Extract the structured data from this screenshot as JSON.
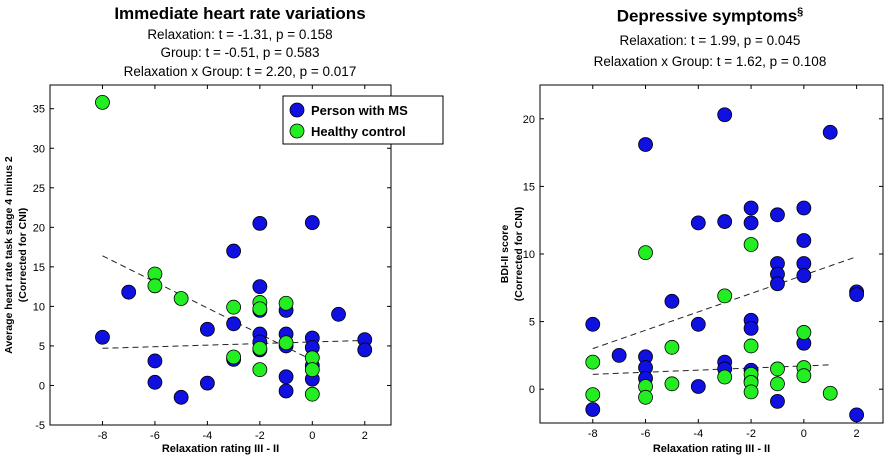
{
  "chart_data": [
    {
      "type": "scatter",
      "title": "Immediate heart rate variations",
      "stats": [
        "Relaxation: t = -1.31, p = 0.158",
        "Group: t = -0.51, p = 0.583",
        "Relaxation x Group: t = 2.20, p = 0.017"
      ],
      "xlabel": "Relaxation rating III - II",
      "ylabel": [
        "Average heart rate task stage 4 minus 2",
        "(Corrected for CNI)"
      ],
      "xlim": [
        -10,
        3
      ],
      "ylim": [
        -5,
        38
      ],
      "xticks": [
        -8,
        -6,
        -4,
        -2,
        0,
        2
      ],
      "yticks": [
        -5,
        0,
        5,
        10,
        15,
        20,
        25,
        30,
        35
      ],
      "legend": [
        {
          "name": "Person with MS",
          "color": "#1010e0"
        },
        {
          "name": "Healthy control",
          "color": "#22ee22"
        }
      ],
      "series": [
        {
          "name": "Person with MS",
          "color": "#1010e0",
          "points": [
            [
              -8,
              6.1
            ],
            [
              -7,
              11.8
            ],
            [
              -6,
              3.1
            ],
            [
              -6,
              0.4
            ],
            [
              -5,
              -1.5
            ],
            [
              -4,
              7.1
            ],
            [
              -4,
              0.3
            ],
            [
              -3,
              17
            ],
            [
              -3,
              7.8
            ],
            [
              -3,
              3.3
            ],
            [
              -2,
              20.5
            ],
            [
              -2,
              12.5
            ],
            [
              -2,
              9.5
            ],
            [
              -2,
              6.5
            ],
            [
              -2,
              5.5
            ],
            [
              -2,
              4.5
            ],
            [
              -1,
              9.5
            ],
            [
              -1,
              6.5
            ],
            [
              -1,
              5.0
            ],
            [
              -1,
              1.1
            ],
            [
              -1,
              -0.7
            ],
            [
              0,
              20.6
            ],
            [
              0,
              6.0
            ],
            [
              0,
              4.8
            ],
            [
              0,
              2.5
            ],
            [
              0,
              0.8
            ],
            [
              1,
              9.0
            ],
            [
              2,
              5.8
            ],
            [
              2,
              4.5
            ]
          ]
        },
        {
          "name": "Healthy control",
          "color": "#22ee22",
          "points": [
            [
              -8,
              35.8
            ],
            [
              -6,
              14.1
            ],
            [
              -6,
              12.6
            ],
            [
              -5,
              11.0
            ],
            [
              -3,
              9.9
            ],
            [
              -3,
              3.6
            ],
            [
              -2,
              10.5
            ],
            [
              -2,
              9.7
            ],
            [
              -2,
              4.7
            ],
            [
              -2,
              2.0
            ],
            [
              -1,
              10.4
            ],
            [
              -1,
              5.4
            ],
            [
              0,
              3.5
            ],
            [
              0,
              2.0
            ],
            [
              0,
              -1.1
            ]
          ]
        }
      ],
      "fit_lines": [
        {
          "from": [
            -8,
            16.4
          ],
          "to": [
            0,
            3.2
          ]
        },
        {
          "from": [
            -8,
            4.7
          ],
          "to": [
            2,
            5.7
          ]
        }
      ]
    },
    {
      "type": "scatter",
      "title": "Depressive symptoms",
      "title_sup": "§",
      "stats": [
        "Relaxation: t = 1.99, p = 0.045",
        "Relaxation x Group: t = 1.62, p = 0.108"
      ],
      "xlabel": "Relaxation rating III - II",
      "ylabel": [
        "BDI-II score",
        "(Corrected for CNI)"
      ],
      "xlim": [
        -10,
        3
      ],
      "ylim": [
        -2.5,
        22.5
      ],
      "xticks": [
        -8,
        -6,
        -4,
        -2,
        0,
        2
      ],
      "yticks": [
        0,
        5,
        10,
        15,
        20
      ],
      "series": [
        {
          "name": "Person with MS",
          "color": "#1010e0",
          "points": [
            [
              -8,
              4.8
            ],
            [
              -8,
              -1.5
            ],
            [
              -7,
              2.5
            ],
            [
              -6,
              18.1
            ],
            [
              -6,
              2.4
            ],
            [
              -6,
              1.6
            ],
            [
              -6,
              0.8
            ],
            [
              -5,
              6.5
            ],
            [
              -4,
              12.3
            ],
            [
              -4,
              4.8
            ],
            [
              -4,
              0.2
            ],
            [
              -3,
              20.3
            ],
            [
              -3,
              12.4
            ],
            [
              -3,
              2.0
            ],
            [
              -3,
              1.5
            ],
            [
              -2,
              13.4
            ],
            [
              -2,
              12.3
            ],
            [
              -2,
              5.1
            ],
            [
              -2,
              4.5
            ],
            [
              -2,
              1.4
            ],
            [
              -2,
              0.6
            ],
            [
              -1,
              12.9
            ],
            [
              -1,
              9.3
            ],
            [
              -1,
              8.5
            ],
            [
              -1,
              7.8
            ],
            [
              -1,
              -0.9
            ],
            [
              0,
              13.4
            ],
            [
              0,
              11.0
            ],
            [
              0,
              9.3
            ],
            [
              0,
              8.4
            ],
            [
              0,
              3.4
            ],
            [
              1,
              19.0
            ],
            [
              2,
              7.2
            ],
            [
              2,
              7.0
            ],
            [
              2,
              -1.9
            ]
          ]
        },
        {
          "name": "Healthy control",
          "color": "#22ee22",
          "points": [
            [
              -8,
              2.0
            ],
            [
              -8,
              -0.4
            ],
            [
              -6,
              10.1
            ],
            [
              -6,
              0.2
            ],
            [
              -6,
              -0.6
            ],
            [
              -5,
              3.1
            ],
            [
              -5,
              0.4
            ],
            [
              -3,
              6.9
            ],
            [
              -3,
              0.9
            ],
            [
              -2,
              10.7
            ],
            [
              -2,
              3.2
            ],
            [
              -2,
              1.1
            ],
            [
              -2,
              0.5
            ],
            [
              -2,
              -0.2
            ],
            [
              -1,
              1.5
            ],
            [
              -1,
              0.4
            ],
            [
              0,
              4.2
            ],
            [
              0,
              1.6
            ],
            [
              0,
              1.0
            ],
            [
              1,
              -0.3
            ]
          ]
        }
      ],
      "fit_lines": [
        {
          "from": [
            -8,
            3.0
          ],
          "to": [
            2,
            9.8
          ]
        },
        {
          "from": [
            -8,
            1.1
          ],
          "to": [
            1,
            1.8
          ]
        }
      ]
    }
  ]
}
